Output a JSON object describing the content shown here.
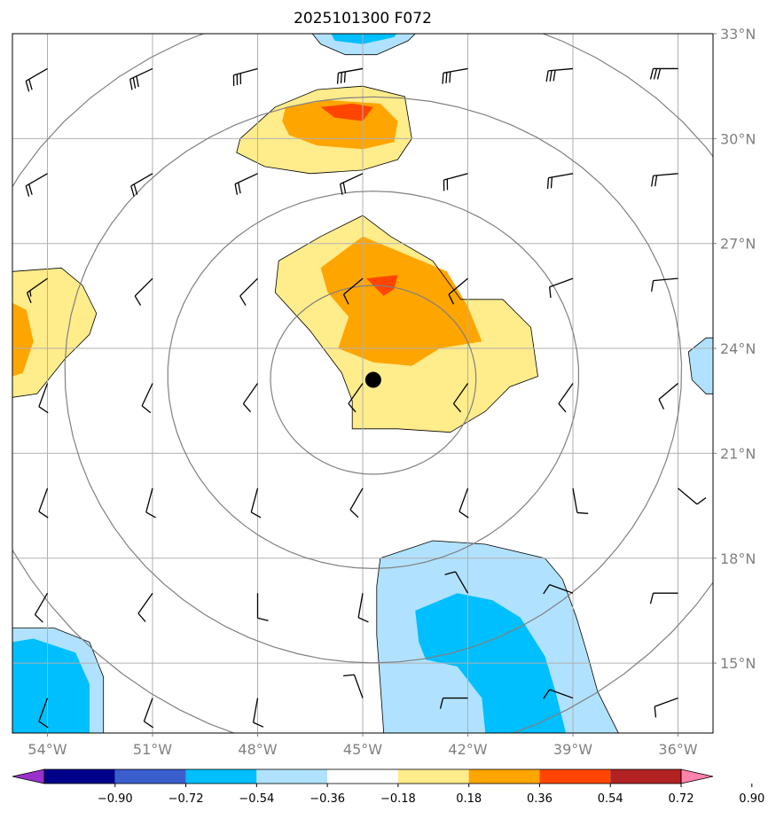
{
  "chart_data": {
    "type": "contour-map",
    "title": "2025101300 F072",
    "xlim": [
      -55,
      -35
    ],
    "ylim": [
      13,
      33
    ],
    "x_ticks": [
      -54,
      -51,
      -48,
      -45,
      -42,
      -39,
      -36
    ],
    "y_ticks": [
      15,
      18,
      21,
      24,
      27,
      30,
      33
    ],
    "x_tick_labels": [
      "54°W",
      "51°W",
      "48°W",
      "45°W",
      "42°W",
      "39°W",
      "36°W"
    ],
    "y_tick_labels": [
      "15°N",
      "18°N",
      "21°N",
      "24°N",
      "27°N",
      "30°N",
      "33°N"
    ],
    "grid": true,
    "center_marker": {
      "lon": -44.7,
      "lat": 23.1
    },
    "range_rings_km": [
      300,
      600,
      900,
      1200
    ],
    "colorbar": {
      "levels": [
        "−0.90",
        "−0.72",
        "−0.54",
        "−0.36",
        "−0.18",
        "0.18",
        "0.36",
        "0.54",
        "0.72",
        "0.90"
      ],
      "colors": [
        "#9932cc",
        "#00008b",
        "#3a5fcd",
        "#00bfff",
        "#b0e2ff",
        "#ffffff",
        "#ffec8b",
        "#ffa500",
        "#ff4500",
        "#b22222",
        "#ff82ab"
      ],
      "extend": "both"
    },
    "filled_contours": [
      {
        "name": "north-positive-blob",
        "level": 0.18,
        "color": "#ffec8b",
        "points": [
          [
            -48.5,
            30.0
          ],
          [
            -47.5,
            30.9
          ],
          [
            -46.3,
            31.4
          ],
          [
            -45.0,
            31.5
          ],
          [
            -43.8,
            31.2
          ],
          [
            -43.6,
            30.0
          ],
          [
            -44.0,
            29.4
          ],
          [
            -45.0,
            29.1
          ],
          [
            -46.5,
            29.0
          ],
          [
            -47.8,
            29.2
          ],
          [
            -48.6,
            29.6
          ]
        ]
      },
      {
        "name": "north-positive-core",
        "level": 0.36,
        "color": "#ffa500",
        "points": [
          [
            -47.2,
            30.9
          ],
          [
            -46.0,
            31.1
          ],
          [
            -44.5,
            31.0
          ],
          [
            -44.0,
            30.5
          ],
          [
            -44.1,
            29.9
          ],
          [
            -45.0,
            29.7
          ],
          [
            -46.3,
            29.8
          ],
          [
            -47.1,
            30.1
          ],
          [
            -47.3,
            30.5
          ]
        ]
      },
      {
        "name": "north-positive-peak",
        "level": 0.54,
        "color": "#ff4500",
        "points": [
          [
            -46.2,
            30.9
          ],
          [
            -45.3,
            31.0
          ],
          [
            -44.7,
            30.9
          ],
          [
            -45.0,
            30.5
          ],
          [
            -45.8,
            30.6
          ]
        ]
      },
      {
        "name": "central-positive-blob",
        "level": 0.18,
        "color": "#ffec8b",
        "points": [
          [
            -47.4,
            26.5
          ],
          [
            -46.2,
            27.2
          ],
          [
            -45.0,
            27.8
          ],
          [
            -44.2,
            27.2
          ],
          [
            -43.0,
            26.5
          ],
          [
            -42.2,
            25.4
          ],
          [
            -41.0,
            25.4
          ],
          [
            -40.2,
            24.6
          ],
          [
            -40.0,
            23.2
          ],
          [
            -40.8,
            22.9
          ],
          [
            -41.5,
            22.2
          ],
          [
            -42.5,
            21.6
          ],
          [
            -44.0,
            21.7
          ],
          [
            -45.3,
            21.7
          ],
          [
            -45.3,
            22.5
          ],
          [
            -45.6,
            23.3
          ],
          [
            -46.5,
            24.5
          ],
          [
            -47.5,
            25.6
          ]
        ]
      },
      {
        "name": "central-positive-core",
        "level": 0.36,
        "color": "#ffa500",
        "points": [
          [
            -46.2,
            26.3
          ],
          [
            -45.0,
            27.2
          ],
          [
            -43.8,
            26.7
          ],
          [
            -42.6,
            26.2
          ],
          [
            -42.0,
            25.2
          ],
          [
            -41.6,
            24.2
          ],
          [
            -42.8,
            24.0
          ],
          [
            -43.6,
            23.5
          ],
          [
            -44.7,
            23.6
          ],
          [
            -45.7,
            24.0
          ],
          [
            -45.4,
            24.9
          ],
          [
            -46.0,
            25.6
          ]
        ]
      },
      {
        "name": "central-positive-peak",
        "level": 0.54,
        "color": "#ff4500",
        "points": [
          [
            -44.9,
            26.0
          ],
          [
            -44.0,
            26.1
          ],
          [
            -44.1,
            25.7
          ],
          [
            -44.4,
            25.5
          ]
        ]
      },
      {
        "name": "west-positive-blob",
        "level": 0.18,
        "color": "#ffec8b",
        "points": [
          [
            -55.0,
            26.2
          ],
          [
            -53.6,
            26.3
          ],
          [
            -53.0,
            25.8
          ],
          [
            -52.6,
            25.0
          ],
          [
            -52.8,
            24.4
          ],
          [
            -53.5,
            23.7
          ],
          [
            -54.3,
            22.7
          ],
          [
            -55.0,
            22.6
          ]
        ]
      },
      {
        "name": "west-positive-core",
        "level": 0.36,
        "color": "#ffa500",
        "points": [
          [
            -55.0,
            25.3
          ],
          [
            -54.6,
            25.1
          ],
          [
            -54.4,
            24.2
          ],
          [
            -54.7,
            23.3
          ],
          [
            -55.0,
            23.2
          ]
        ]
      },
      {
        "name": "north-negative-blob",
        "level": -0.18,
        "color": "#b0e2ff",
        "points": [
          [
            -46.6,
            33.2
          ],
          [
            -43.3,
            33.2
          ],
          [
            -43.7,
            32.8
          ],
          [
            -44.6,
            32.4
          ],
          [
            -45.5,
            32.4
          ],
          [
            -46.2,
            32.7
          ]
        ]
      },
      {
        "name": "north-negative-core",
        "level": -0.36,
        "color": "#00bfff",
        "points": [
          [
            -46.0,
            33.2
          ],
          [
            -43.9,
            33.2
          ],
          [
            -44.1,
            32.9
          ],
          [
            -45.0,
            32.7
          ],
          [
            -45.8,
            32.8
          ]
        ]
      },
      {
        "name": "southeast-negative-blob",
        "level": -0.18,
        "color": "#b0e2ff",
        "points": [
          [
            -44.5,
            18.0
          ],
          [
            -43.0,
            18.5
          ],
          [
            -41.5,
            18.4
          ],
          [
            -39.8,
            18.0
          ],
          [
            -39.3,
            17.4
          ],
          [
            -38.9,
            16.3
          ],
          [
            -38.6,
            15.3
          ],
          [
            -38.3,
            14.2
          ],
          [
            -37.7,
            13.0
          ],
          [
            -44.4,
            13.0
          ],
          [
            -44.5,
            14.4
          ],
          [
            -44.6,
            15.8
          ],
          [
            -44.6,
            17.2
          ]
        ]
      },
      {
        "name": "southeast-negative-core",
        "level": -0.36,
        "color": "#00bfff",
        "points": [
          [
            -43.5,
            16.5
          ],
          [
            -42.3,
            17.0
          ],
          [
            -41.3,
            16.8
          ],
          [
            -40.5,
            16.3
          ],
          [
            -39.8,
            15.2
          ],
          [
            -39.5,
            14.2
          ],
          [
            -39.2,
            13.0
          ],
          [
            -41.5,
            13.0
          ],
          [
            -41.6,
            14.0
          ],
          [
            -42.3,
            14.9
          ],
          [
            -43.2,
            15.1
          ],
          [
            -43.4,
            15.6
          ]
        ]
      },
      {
        "name": "southwest-negative-blob",
        "level": -0.18,
        "color": "#b0e2ff",
        "points": [
          [
            -55.0,
            16.0
          ],
          [
            -53.8,
            16.0
          ],
          [
            -52.8,
            15.6
          ],
          [
            -52.4,
            14.6
          ],
          [
            -52.4,
            13.0
          ],
          [
            -55.0,
            13.0
          ]
        ]
      },
      {
        "name": "southwest-negative-core",
        "level": -0.36,
        "color": "#00bfff",
        "points": [
          [
            -55.0,
            15.6
          ],
          [
            -54.4,
            15.7
          ],
          [
            -53.2,
            15.3
          ],
          [
            -52.8,
            14.4
          ],
          [
            -52.8,
            13.0
          ],
          [
            -55.0,
            13.0
          ]
        ]
      },
      {
        "name": "east-negative-blob",
        "level": -0.18,
        "color": "#b0e2ff",
        "points": [
          [
            -35.7,
            23.9
          ],
          [
            -35.2,
            24.3
          ],
          [
            -35.0,
            24.3
          ],
          [
            -35.0,
            22.7
          ],
          [
            -35.2,
            22.7
          ],
          [
            -35.6,
            23.1
          ]
        ]
      }
    ],
    "wind_barbs": {
      "lons": [
        -54,
        -51,
        -48,
        -45,
        -42,
        -39,
        -36
      ],
      "lats": [
        14,
        17,
        20,
        23,
        26,
        29,
        32
      ],
      "rows": [
        {
          "lat": 14,
          "dirs": [
            200,
            200,
            190,
            340,
            270,
            290,
            250
          ],
          "speeds": [
            10,
            10,
            10,
            10,
            10,
            10,
            10
          ]
        },
        {
          "lat": 17,
          "dirs": [
            210,
            215,
            180,
            190,
            330,
            290,
            270
          ],
          "speeds": [
            10,
            10,
            10,
            10,
            10,
            10,
            10
          ]
        },
        {
          "lat": 20,
          "dirs": [
            200,
            195,
            195,
            210,
            200,
            170,
            130
          ],
          "speeds": [
            10,
            10,
            10,
            10,
            10,
            10,
            10
          ]
        },
        {
          "lat": 23,
          "dirs": [
            200,
            205,
            215,
            215,
            215,
            215,
            230
          ],
          "speeds": [
            10,
            10,
            10,
            10,
            10,
            10,
            10
          ]
        },
        {
          "lat": 26,
          "dirs": [
            235,
            225,
            225,
            230,
            230,
            250,
            265
          ],
          "speeds": [
            15,
            10,
            10,
            10,
            10,
            10,
            10
          ]
        },
        {
          "lat": 29,
          "dirs": [
            240,
            240,
            245,
            245,
            255,
            260,
            265
          ],
          "speeds": [
            20,
            20,
            20,
            20,
            20,
            20,
            20
          ]
        },
        {
          "lat": 32,
          "dirs": [
            240,
            245,
            255,
            260,
            260,
            265,
            270
          ],
          "speeds": [
            20,
            30,
            30,
            30,
            30,
            30,
            30
          ]
        }
      ]
    }
  }
}
